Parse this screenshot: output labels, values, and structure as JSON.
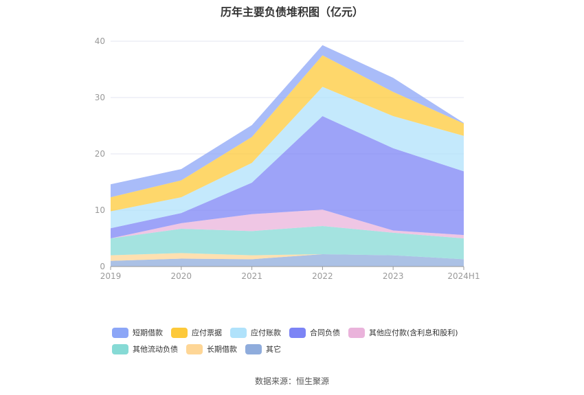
{
  "page": {
    "title": "历年主要负债堆积图（亿元）",
    "source": "数据来源：恒生聚源"
  },
  "chart_data": {
    "type": "area",
    "stacked": true,
    "title": "历年主要负债堆积图（亿元）",
    "categories": [
      "2019",
      "2020",
      "2021",
      "2022",
      "2023",
      "2024H1"
    ],
    "ylim": [
      0,
      40
    ],
    "yticks": [
      0,
      10,
      20,
      30,
      40
    ],
    "grid": true,
    "legend_position": "bottom",
    "series": [
      {
        "name": "其它",
        "color": "#8facdc",
        "values": [
          1.0,
          1.4,
          1.3,
          2.2,
          2.0,
          1.3
        ]
      },
      {
        "name": "长期借款",
        "color": "#fed696",
        "values": [
          1.0,
          1.0,
          0.7,
          0.0,
          0.0,
          0.0
        ]
      },
      {
        "name": "其他流动负债",
        "color": "#86dad5",
        "values": [
          3.0,
          4.3,
          4.3,
          5.0,
          4.0,
          3.7
        ]
      },
      {
        "name": "其他应付款(含利息和股利)",
        "color": "#eab3db",
        "values": [
          0.0,
          1.0,
          3.0,
          2.9,
          0.4,
          0.6
        ]
      },
      {
        "name": "合同负债",
        "color": "#7c84f5",
        "values": [
          1.8,
          1.8,
          5.6,
          16.6,
          14.6,
          11.3
        ]
      },
      {
        "name": "应付账款",
        "color": "#b0e2fb",
        "values": [
          3.0,
          2.8,
          3.5,
          5.2,
          5.7,
          6.3
        ]
      },
      {
        "name": "应付票据",
        "color": "#fdc93a",
        "values": [
          2.5,
          3.0,
          4.6,
          5.6,
          4.3,
          2.2
        ]
      },
      {
        "name": "短期借款",
        "color": "#8ca6f7",
        "values": [
          2.3,
          2.0,
          2.1,
          1.8,
          2.5,
          0.1
        ]
      }
    ]
  },
  "legend": {
    "rows": [
      [
        {
          "label": "短期借款",
          "color": "#8ca6f7"
        },
        {
          "label": "应付票据",
          "color": "#fdc93a"
        },
        {
          "label": "应付账款",
          "color": "#b0e2fb"
        },
        {
          "label": "合同负债",
          "color": "#7c84f5"
        },
        {
          "label": "其他应付款(含利息和股利)",
          "color": "#eab3db"
        }
      ],
      [
        {
          "label": "其他流动负债",
          "color": "#86dad5"
        },
        {
          "label": "长期借款",
          "color": "#fed696"
        },
        {
          "label": "其它",
          "color": "#8facdc"
        }
      ]
    ]
  }
}
